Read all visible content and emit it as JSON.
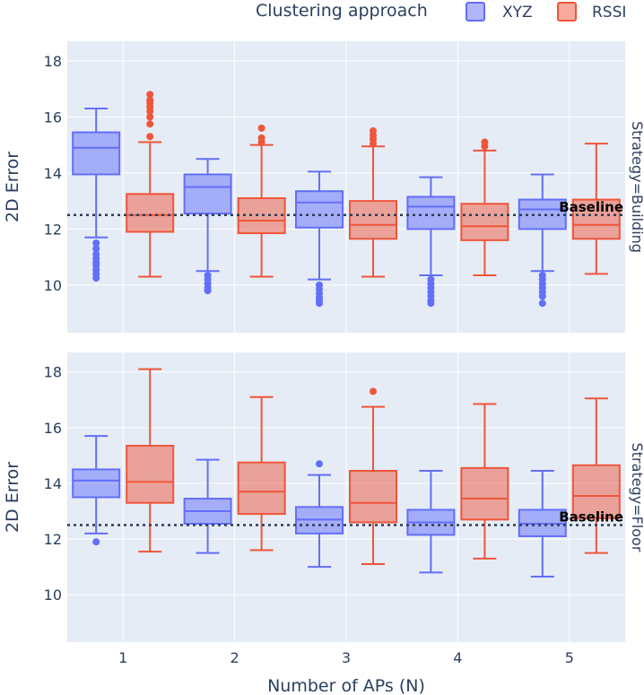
{
  "chart_data": {
    "type": "box",
    "title": "",
    "xlabel": "Number of APs (N)",
    "ylabel": "2D Error",
    "categories": [
      "1",
      "2",
      "3",
      "4",
      "5"
    ],
    "ylim": [
      8.3,
      18.7
    ],
    "yticks": [
      10,
      12,
      14,
      16,
      18
    ],
    "legend": {
      "title": "Clustering approach",
      "placement": "top-right",
      "items": [
        {
          "name": "XYZ",
          "color": "#636efa"
        },
        {
          "name": "RSSI",
          "color": "#ef553b"
        }
      ]
    },
    "baseline": {
      "label": "Baseline",
      "value": 12.5
    },
    "facets": [
      {
        "label": "Strategy=Building",
        "series": [
          {
            "name": "XYZ",
            "color": "#636efa",
            "boxes": [
              {
                "category": "1",
                "low": 11.7,
                "q1": 13.95,
                "median": 14.9,
                "q3": 15.45,
                "high": 16.3,
                "outliers": [
                  11.5,
                  11.3,
                  11.1,
                  10.95,
                  10.8,
                  10.7,
                  10.55,
                  10.4,
                  10.25
                ]
              },
              {
                "category": "2",
                "low": 10.5,
                "q1": 12.55,
                "median": 13.5,
                "q3": 13.95,
                "high": 14.5,
                "outliers": [
                  10.35,
                  10.2,
                  10.05,
                  9.9,
                  9.8
                ]
              },
              {
                "category": "3",
                "low": 10.2,
                "q1": 12.05,
                "median": 12.95,
                "q3": 13.35,
                "high": 14.05,
                "outliers": [
                  10.0,
                  9.85,
                  9.7,
                  9.55,
                  9.45,
                  9.35
                ]
              },
              {
                "category": "4",
                "low": 10.35,
                "q1": 12.0,
                "median": 12.8,
                "q3": 13.15,
                "high": 13.85,
                "outliers": [
                  10.2,
                  10.05,
                  9.9,
                  9.75,
                  9.6,
                  9.45,
                  9.35
                ]
              },
              {
                "category": "5",
                "low": 10.5,
                "q1": 12.0,
                "median": 12.7,
                "q3": 13.05,
                "high": 13.95,
                "outliers": [
                  10.35,
                  10.2,
                  10.05,
                  9.9,
                  9.75,
                  9.6,
                  9.35
                ]
              }
            ]
          },
          {
            "name": "RSSI",
            "color": "#ef553b",
            "boxes": [
              {
                "category": "1",
                "low": 10.3,
                "q1": 11.9,
                "median": 12.5,
                "q3": 13.25,
                "high": 15.1,
                "outliers": [
                  15.3,
                  15.75,
                  16.0,
                  16.2,
                  16.35,
                  16.5,
                  16.6,
                  16.8
                ]
              },
              {
                "category": "2",
                "low": 10.3,
                "q1": 11.85,
                "median": 12.3,
                "q3": 13.1,
                "high": 15.0,
                "outliers": [
                  15.1,
                  15.25,
                  15.6
                ]
              },
              {
                "category": "3",
                "low": 10.3,
                "q1": 11.65,
                "median": 12.15,
                "q3": 13.0,
                "high": 14.95,
                "outliers": [
                  15.05,
                  15.2,
                  15.35,
                  15.5
                ]
              },
              {
                "category": "4",
                "low": 10.35,
                "q1": 11.6,
                "median": 12.1,
                "q3": 12.9,
                "high": 14.8,
                "outliers": [
                  14.95,
                  15.1
                ]
              },
              {
                "category": "5",
                "low": 10.4,
                "q1": 11.65,
                "median": 12.15,
                "q3": 13.05,
                "high": 15.05,
                "outliers": []
              }
            ]
          }
        ]
      },
      {
        "label": "Strategy=Floor",
        "series": [
          {
            "name": "XYZ",
            "color": "#636efa",
            "boxes": [
              {
                "category": "1",
                "low": 12.2,
                "q1": 13.5,
                "median": 14.1,
                "q3": 14.5,
                "high": 15.7,
                "outliers": [
                  11.9
                ]
              },
              {
                "category": "2",
                "low": 11.5,
                "q1": 12.55,
                "median": 13.0,
                "q3": 13.45,
                "high": 14.85,
                "outliers": []
              },
              {
                "category": "3",
                "low": 11.0,
                "q1": 12.2,
                "median": 12.7,
                "q3": 13.15,
                "high": 14.3,
                "outliers": [
                  14.7
                ]
              },
              {
                "category": "4",
                "low": 10.8,
                "q1": 12.15,
                "median": 12.6,
                "q3": 13.05,
                "high": 14.45,
                "outliers": []
              },
              {
                "category": "5",
                "low": 10.65,
                "q1": 12.1,
                "median": 12.55,
                "q3": 13.05,
                "high": 14.45,
                "outliers": []
              }
            ]
          },
          {
            "name": "RSSI",
            "color": "#ef553b",
            "boxes": [
              {
                "category": "1",
                "low": 11.55,
                "q1": 13.3,
                "median": 14.05,
                "q3": 15.35,
                "high": 18.1,
                "outliers": []
              },
              {
                "category": "2",
                "low": 11.6,
                "q1": 12.9,
                "median": 13.7,
                "q3": 14.75,
                "high": 17.1,
                "outliers": []
              },
              {
                "category": "3",
                "low": 11.1,
                "q1": 12.6,
                "median": 13.3,
                "q3": 14.45,
                "high": 16.75,
                "outliers": [
                  17.3
                ]
              },
              {
                "category": "4",
                "low": 11.3,
                "q1": 12.7,
                "median": 13.45,
                "q3": 14.55,
                "high": 16.85,
                "outliers": []
              },
              {
                "category": "5",
                "low": 11.5,
                "q1": 12.75,
                "median": 13.55,
                "q3": 14.65,
                "high": 17.05,
                "outliers": []
              }
            ]
          }
        ]
      }
    ]
  }
}
